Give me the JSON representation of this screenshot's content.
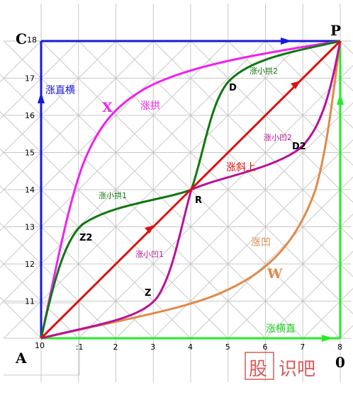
{
  "colors": {
    "grid": "#c8c8c8",
    "blue": "#1a1ad6",
    "green": "#22ee22",
    "red": "#dd1111",
    "magenta": "#ee22ee",
    "dark_green": "#117711",
    "purple": "#bb1199",
    "orange": "#e08a4a",
    "watermark": "#d85a5a"
  },
  "axes": {
    "y_ticks": [
      "11",
      "12",
      "13",
      "14",
      "15",
      "16",
      "17"
    ],
    "x_ticks": [
      ":1",
      "2",
      "3",
      "4",
      "5",
      "6",
      "7",
      "8"
    ],
    "x_origin_label": "10",
    "y_origin_label": "18"
  },
  "points": {
    "A": "A",
    "C": "C",
    "P": "P",
    "O": "0",
    "R": "R",
    "X": "X",
    "Z": "Z",
    "Z2": "Z2",
    "D": "D",
    "D2": "D2",
    "W": "W"
  },
  "curves": {
    "up_straight": "涨直横",
    "straight_up": "涨横直",
    "arch": "涨拱",
    "concave": "涨凹",
    "diagonal": "涨斜上",
    "small_arch_1": "涨小拱1",
    "small_arch_2": "涨小拱2",
    "small_concave_1": "涨小凹1",
    "small_concave_2": "涨小凹2"
  },
  "watermark": {
    "char1": "股",
    "rest": "识吧"
  }
}
